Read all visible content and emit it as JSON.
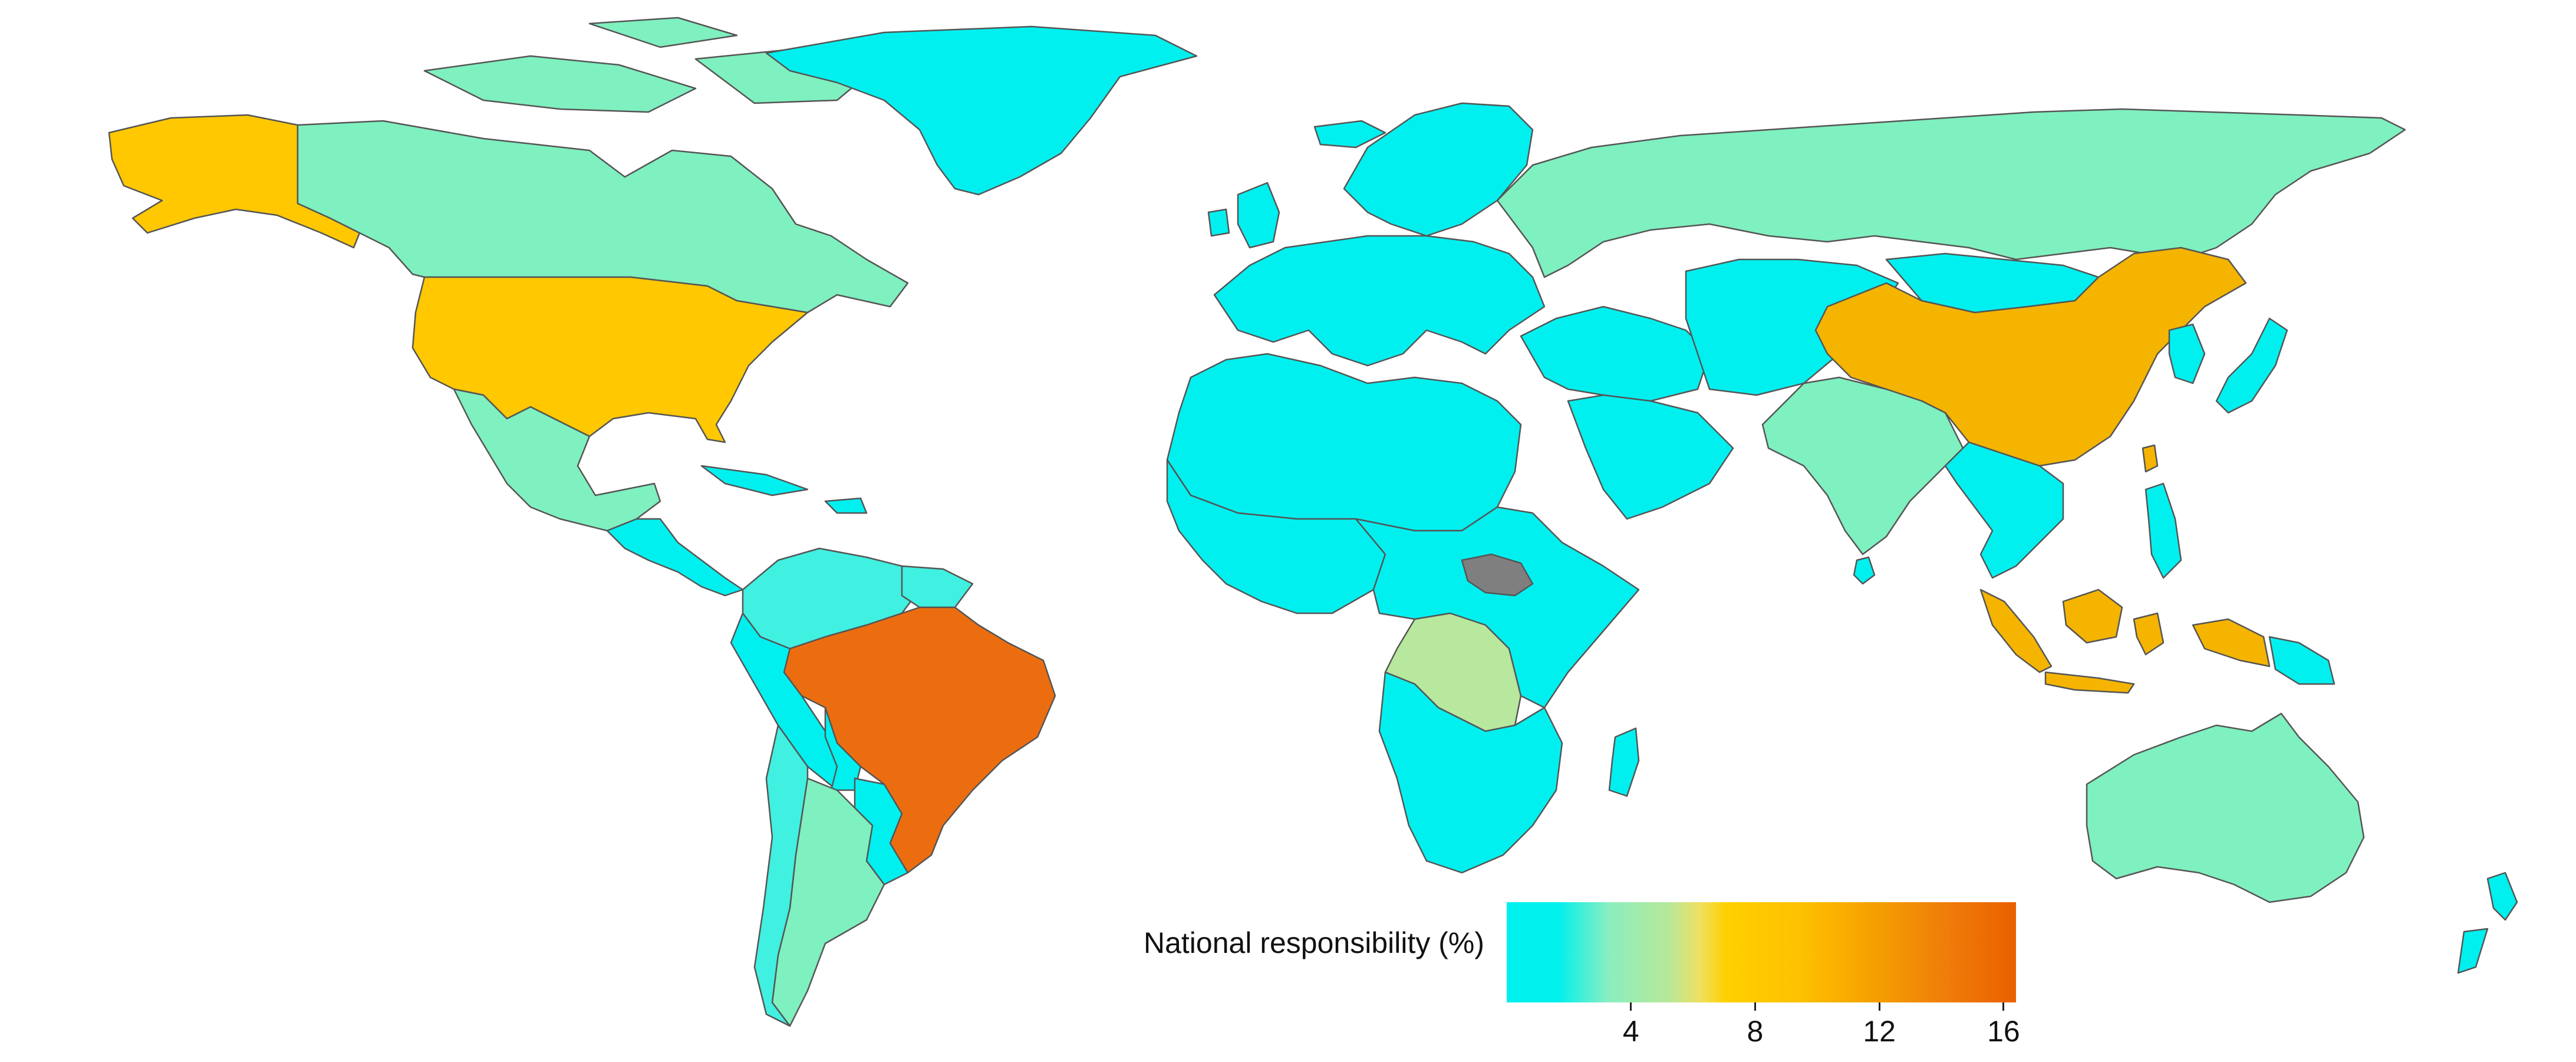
{
  "legend": {
    "title": "National responsibility (%)",
    "scale_min": 0,
    "scale_max": 16.4,
    "ticks": [
      {
        "value": 4,
        "label": "4"
      },
      {
        "value": 8,
        "label": "8"
      },
      {
        "value": 12,
        "label": "12"
      },
      {
        "value": 16,
        "label": "16"
      }
    ],
    "no_data_color": "#7f7f7f"
  },
  "countries": [
    {
      "name": "alaska",
      "value": 9.5,
      "color": "#ffc800"
    },
    {
      "name": "canada",
      "value": 3.0,
      "color": "#7ff0bf"
    },
    {
      "name": "greenland",
      "value": 0.5,
      "color": "#00f0f0"
    },
    {
      "name": "usa",
      "value": 9.5,
      "color": "#ffc800"
    },
    {
      "name": "mexico",
      "value": 2.5,
      "color": "#7ff0bf"
    },
    {
      "name": "central-america",
      "value": 0.5,
      "color": "#00f0f0"
    },
    {
      "name": "caribbean",
      "value": 0.5,
      "color": "#00f0f0"
    },
    {
      "name": "colombia-venezuela",
      "value": 1.5,
      "color": "#40f0e0"
    },
    {
      "name": "guianas",
      "value": 1.5,
      "color": "#40f0e0"
    },
    {
      "name": "peru-ecuador",
      "value": 0.8,
      "color": "#00f0f0"
    },
    {
      "name": "brazil",
      "value": 14.5,
      "color": "#ec6d10"
    },
    {
      "name": "bolivia",
      "value": 0.8,
      "color": "#00f0f0"
    },
    {
      "name": "paraguay-uruguay",
      "value": 0.8,
      "color": "#00f0f0"
    },
    {
      "name": "argentina",
      "value": 3.0,
      "color": "#7ff0bf"
    },
    {
      "name": "chile",
      "value": 1.5,
      "color": "#40f0e0"
    },
    {
      "name": "scandinavia",
      "value": 0.6,
      "color": "#00f0f0"
    },
    {
      "name": "iceland",
      "value": 0.5,
      "color": "#00f0f0"
    },
    {
      "name": "uk-ireland",
      "value": 0.5,
      "color": "#00f0f0"
    },
    {
      "name": "europe",
      "value": 0.8,
      "color": "#00f0f0"
    },
    {
      "name": "russia",
      "value": 3.0,
      "color": "#7ff0bf"
    },
    {
      "name": "north-africa",
      "value": 0.6,
      "color": "#00f0f0"
    },
    {
      "name": "west-africa",
      "value": 0.6,
      "color": "#00f0f0"
    },
    {
      "name": "central-east-africa",
      "value": 0.6,
      "color": "#00f0f0"
    },
    {
      "name": "south-sudan",
      "value": null,
      "color": "#7f7f7f"
    },
    {
      "name": "dr-congo",
      "value": 4.5,
      "color": "#b7e89e"
    },
    {
      "name": "southern-africa",
      "value": 0.6,
      "color": "#00f0f0"
    },
    {
      "name": "madagascar",
      "value": 0.6,
      "color": "#00f0f0"
    },
    {
      "name": "middle-east",
      "value": 0.6,
      "color": "#00f0f0"
    },
    {
      "name": "arabia",
      "value": 0.5,
      "color": "#00f0f0"
    },
    {
      "name": "central-asia",
      "value": 0.6,
      "color": "#00f0f0"
    },
    {
      "name": "mongolia",
      "value": 0.5,
      "color": "#00f0f0"
    },
    {
      "name": "china",
      "value": 10.5,
      "color": "#f5b400"
    },
    {
      "name": "india",
      "value": 3.0,
      "color": "#7ff0bf"
    },
    {
      "name": "sri-lanka",
      "value": 0.5,
      "color": "#00f0f0"
    },
    {
      "name": "southeast-asia",
      "value": 0.8,
      "color": "#00f0f0"
    },
    {
      "name": "korea",
      "value": 0.5,
      "color": "#00f0f0"
    },
    {
      "name": "japan",
      "value": 0.6,
      "color": "#00f0f0"
    },
    {
      "name": "taiwan",
      "value": 10.0,
      "color": "#f5b400"
    },
    {
      "name": "philippines",
      "value": 0.7,
      "color": "#00f0f0"
    },
    {
      "name": "indonesia",
      "value": 10.5,
      "color": "#f5b400"
    },
    {
      "name": "papua-new-guinea",
      "value": 0.8,
      "color": "#00f0f0"
    },
    {
      "name": "australia",
      "value": 3.0,
      "color": "#7ff0bf"
    },
    {
      "name": "new-zealand",
      "value": 0.6,
      "color": "#00f0f0"
    }
  ]
}
